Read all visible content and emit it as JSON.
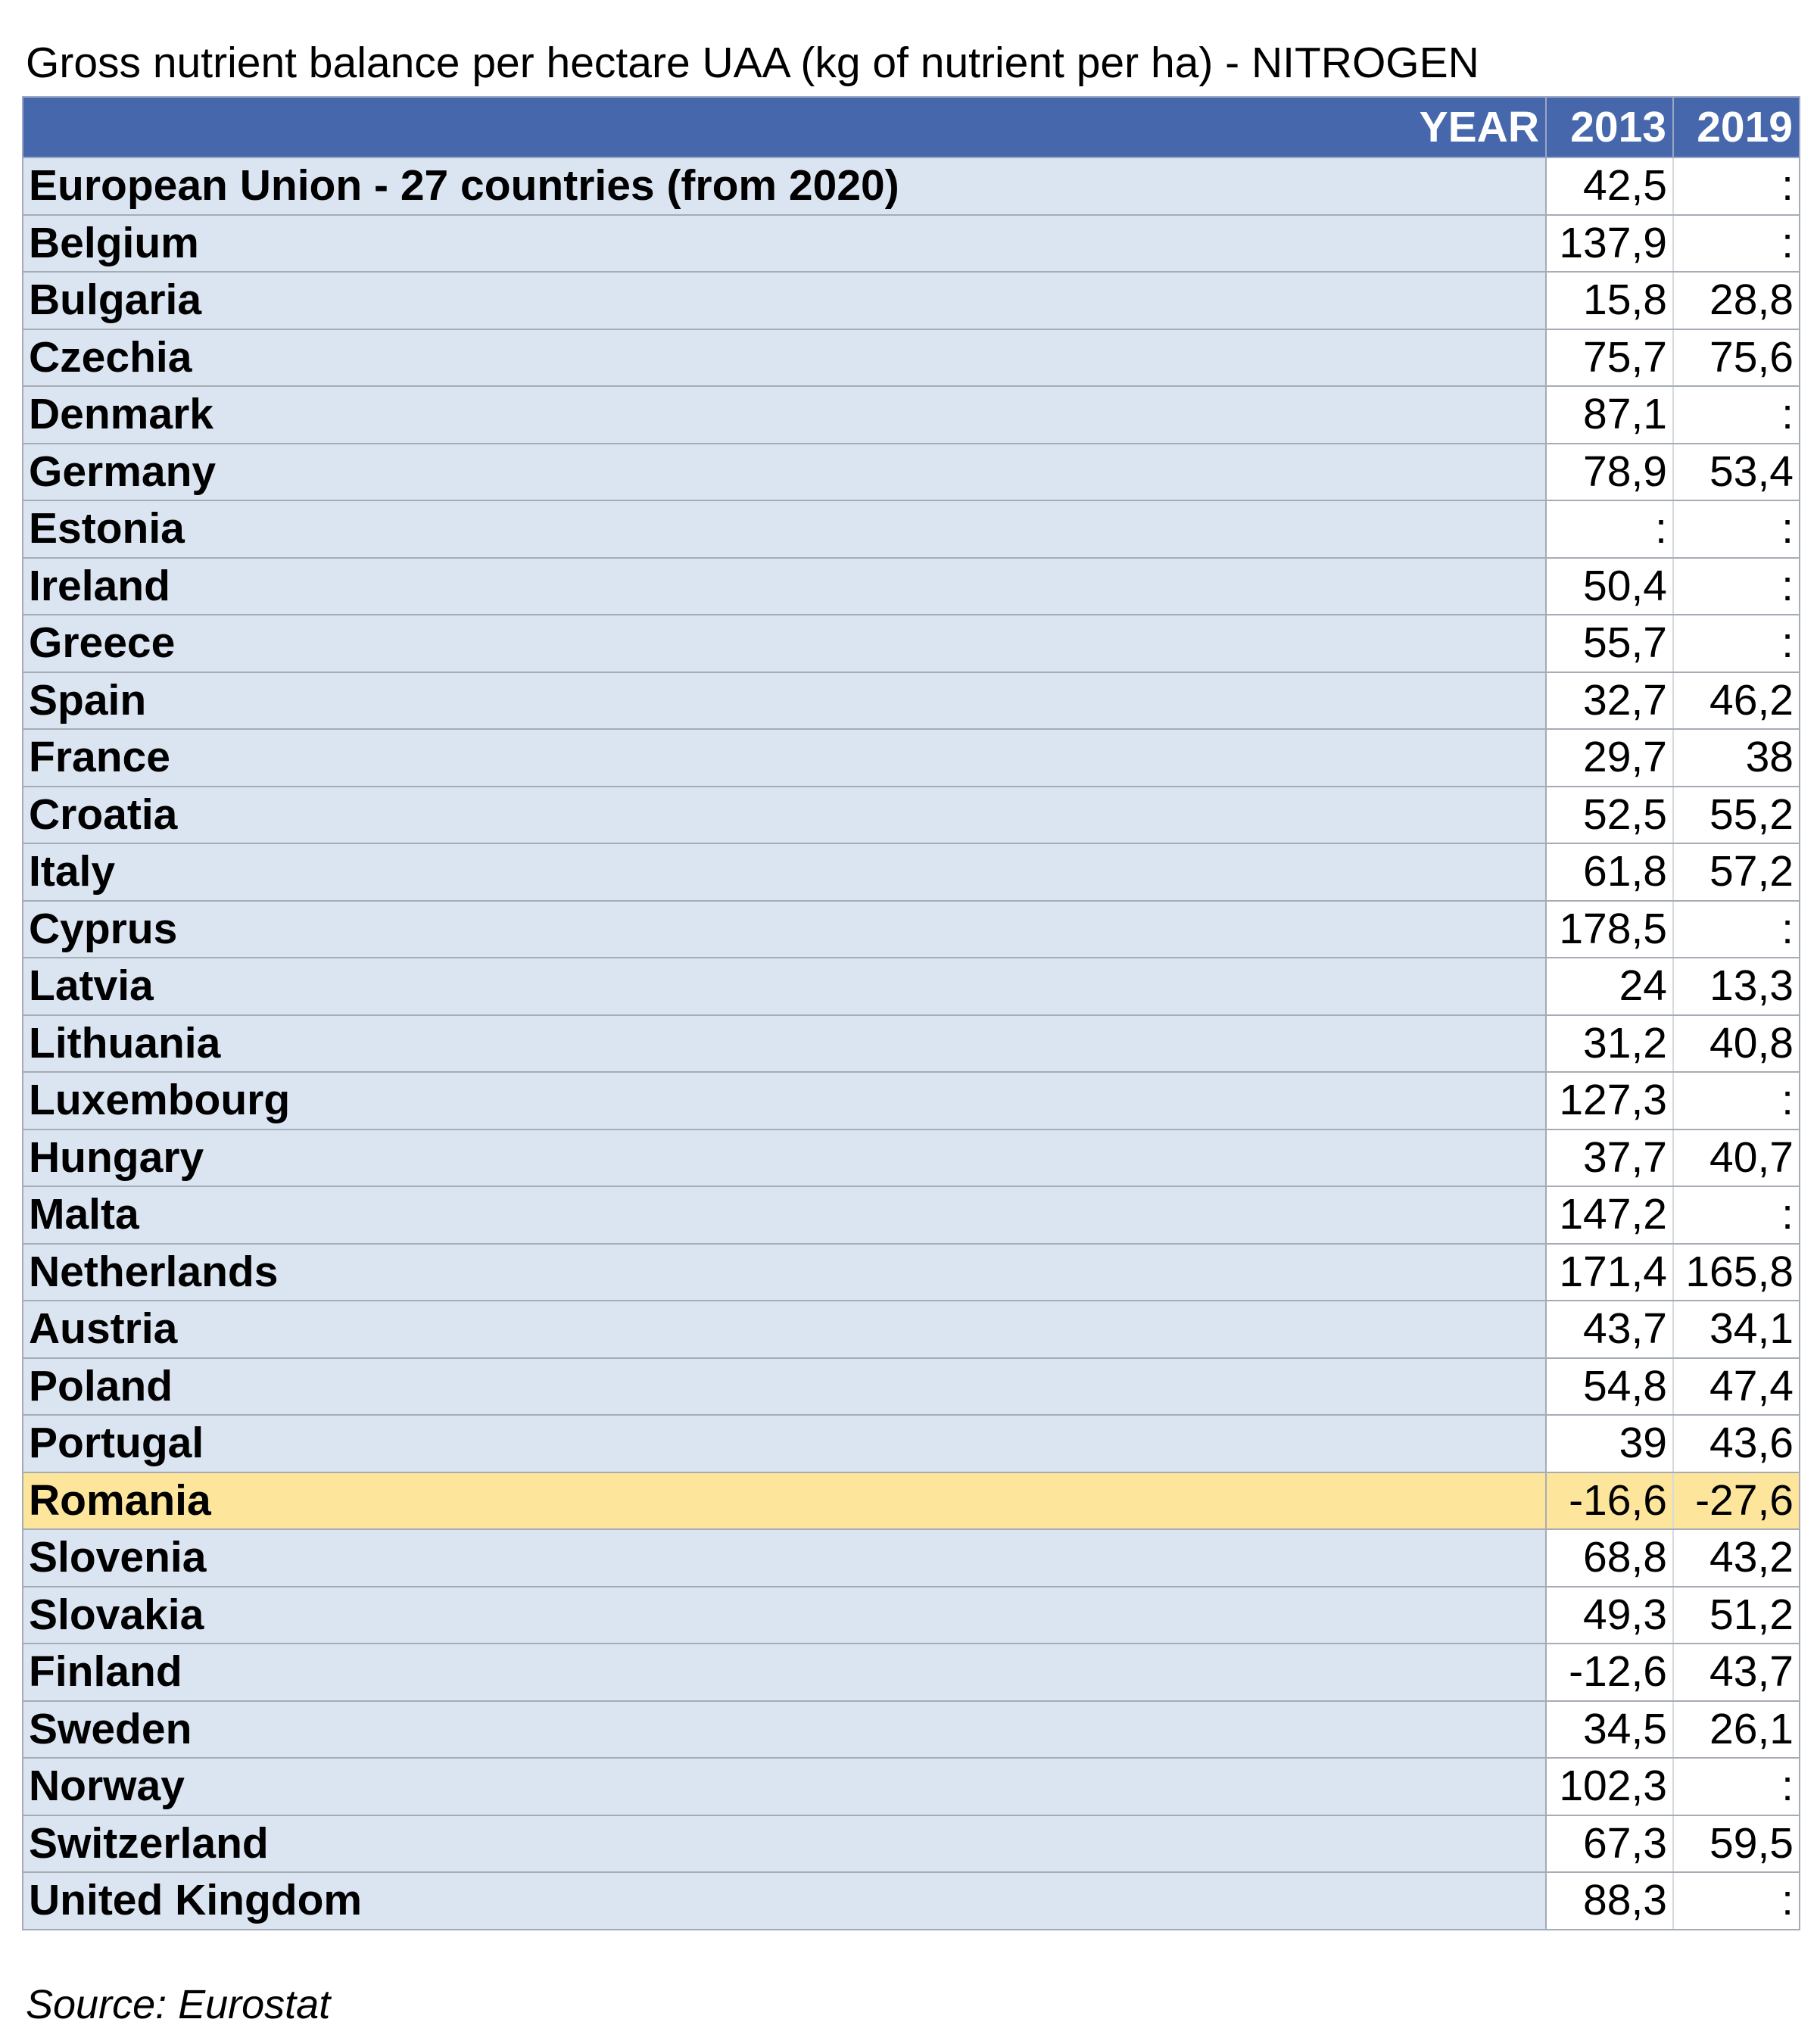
{
  "title": "Gross nutrient balance per hectare UAA (kg of nutrient per ha) - NITROGEN",
  "header": {
    "year_label": "YEAR",
    "year_1": "2013",
    "year_2": "2019"
  },
  "highlight_color": "#fde59b",
  "header_color": "#4667ac",
  "row_fill_color": "#dbe5f1",
  "rows": [
    {
      "name": "European Union - 27 countries (from 2020)",
      "v2013": "42,5",
      "v2019": ":"
    },
    {
      "name": "Belgium",
      "v2013": "137,9",
      "v2019": ":"
    },
    {
      "name": "Bulgaria",
      "v2013": "15,8",
      "v2019": "28,8"
    },
    {
      "name": "Czechia",
      "v2013": "75,7",
      "v2019": "75,6"
    },
    {
      "name": "Denmark",
      "v2013": "87,1",
      "v2019": ":"
    },
    {
      "name": "Germany",
      "v2013": "78,9",
      "v2019": "53,4"
    },
    {
      "name": "Estonia",
      "v2013": ":",
      "v2019": ":"
    },
    {
      "name": "Ireland",
      "v2013": "50,4",
      "v2019": ":"
    },
    {
      "name": "Greece",
      "v2013": "55,7",
      "v2019": ":"
    },
    {
      "name": "Spain",
      "v2013": "32,7",
      "v2019": "46,2"
    },
    {
      "name": "France",
      "v2013": "29,7",
      "v2019": "38"
    },
    {
      "name": "Croatia",
      "v2013": "52,5",
      "v2019": "55,2"
    },
    {
      "name": "Italy",
      "v2013": "61,8",
      "v2019": "57,2"
    },
    {
      "name": "Cyprus",
      "v2013": "178,5",
      "v2019": ":"
    },
    {
      "name": "Latvia",
      "v2013": "24",
      "v2019": "13,3"
    },
    {
      "name": "Lithuania",
      "v2013": "31,2",
      "v2019": "40,8"
    },
    {
      "name": "Luxembourg",
      "v2013": "127,3",
      "v2019": ":"
    },
    {
      "name": "Hungary",
      "v2013": "37,7",
      "v2019": "40,7"
    },
    {
      "name": "Malta",
      "v2013": "147,2",
      "v2019": ":"
    },
    {
      "name": "Netherlands",
      "v2013": "171,4",
      "v2019": "165,8"
    },
    {
      "name": "Austria",
      "v2013": "43,7",
      "v2019": "34,1"
    },
    {
      "name": "Poland",
      "v2013": "54,8",
      "v2019": "47,4"
    },
    {
      "name": "Portugal",
      "v2013": "39",
      "v2019": "43,6"
    },
    {
      "name": "Romania",
      "v2013": "-16,6",
      "v2019": "-27,6",
      "highlight": true
    },
    {
      "name": "Slovenia",
      "v2013": "68,8",
      "v2019": "43,2"
    },
    {
      "name": "Slovakia",
      "v2013": "49,3",
      "v2019": "51,2"
    },
    {
      "name": "Finland",
      "v2013": "-12,6",
      "v2019": "43,7"
    },
    {
      "name": "Sweden",
      "v2013": "34,5",
      "v2019": "26,1"
    },
    {
      "name": "Norway",
      "v2013": "102,3",
      "v2019": ":"
    },
    {
      "name": "Switzerland",
      "v2013": "67,3",
      "v2019": "59,5"
    },
    {
      "name": "United Kingdom",
      "v2013": "88,3",
      "v2019": ":"
    }
  ],
  "source": "Source: Eurostat"
}
